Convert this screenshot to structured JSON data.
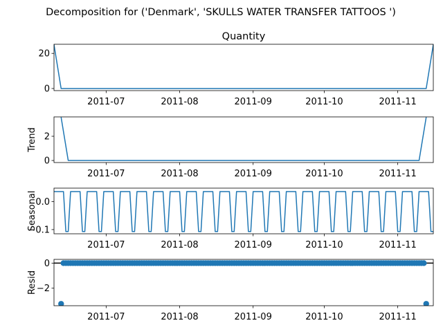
{
  "suptitle": "Decomposition for ('Denmark', 'SKULLS  WATER TRANSFER TATTOOS ')",
  "line_color": "#1f77b4",
  "chart_data": [
    {
      "type": "line",
      "title": "Quantity",
      "ylabel": "",
      "x_range": [
        "2011-06-09",
        "2011-11-16"
      ],
      "ylim": [
        -1.2,
        25.2
      ],
      "yticks": [
        0,
        20
      ],
      "xticks": [
        "2011-07",
        "2011-08",
        "2011-09",
        "2011-10",
        "2011-11"
      ],
      "grid": false,
      "series": [
        {
          "x": [
            "2011-06-09",
            "2011-06-12",
            "2011-11-13",
            "2011-11-16"
          ],
          "y": [
            25,
            0,
            0,
            25
          ]
        }
      ]
    },
    {
      "type": "line",
      "title": "",
      "ylabel": "Trend",
      "x_range": [
        "2011-06-09",
        "2011-11-16"
      ],
      "ylim": [
        -0.17,
        3.6
      ],
      "yticks": [
        0,
        2
      ],
      "xticks": [
        "2011-07",
        "2011-08",
        "2011-09",
        "2011-10",
        "2011-11"
      ],
      "grid": false,
      "series": [
        {
          "x": [
            "2011-06-12",
            "2011-06-15",
            "2011-11-10",
            "2011-11-13"
          ],
          "y": [
            3.57,
            0,
            0,
            3.57
          ]
        }
      ]
    },
    {
      "type": "line",
      "title": "",
      "ylabel": "Seasonal",
      "x_range": [
        "2011-06-09",
        "2011-11-16"
      ],
      "ylim": [
        -0.115,
        0.048
      ],
      "yticks": [
        0.0,
        -0.1
      ],
      "ytick_labels": [
        "0.0",
        "−0.1"
      ],
      "xticks": [
        "2011-07",
        "2011-08",
        "2011-09",
        "2011-10",
        "2011-11"
      ],
      "grid": false,
      "period_days": 7,
      "pattern": [
        0.0357,
        0.0357,
        0.0357,
        0.0357,
        0.0357,
        -0.1071,
        -0.1071
      ],
      "start": "2011-06-09"
    },
    {
      "type": "scatter",
      "title": "",
      "ylabel": "Resid",
      "x_range": [
        "2011-06-09",
        "2011-11-16"
      ],
      "ylim": [
        -3.4,
        0.3
      ],
      "yticks": [
        0,
        -2
      ],
      "ytick_labels": [
        "0",
        "−2"
      ],
      "xticks": [
        "2011-07",
        "2011-08",
        "2011-09",
        "2011-10",
        "2011-11"
      ],
      "grid": false,
      "zero_line": true,
      "points_start": "2011-06-12",
      "points_end": "2011-11-13",
      "points_value": 0,
      "outliers": [
        {
          "x": "2011-06-12",
          "y": -3.25
        },
        {
          "x": "2011-11-13",
          "y": -3.25
        }
      ]
    }
  ]
}
